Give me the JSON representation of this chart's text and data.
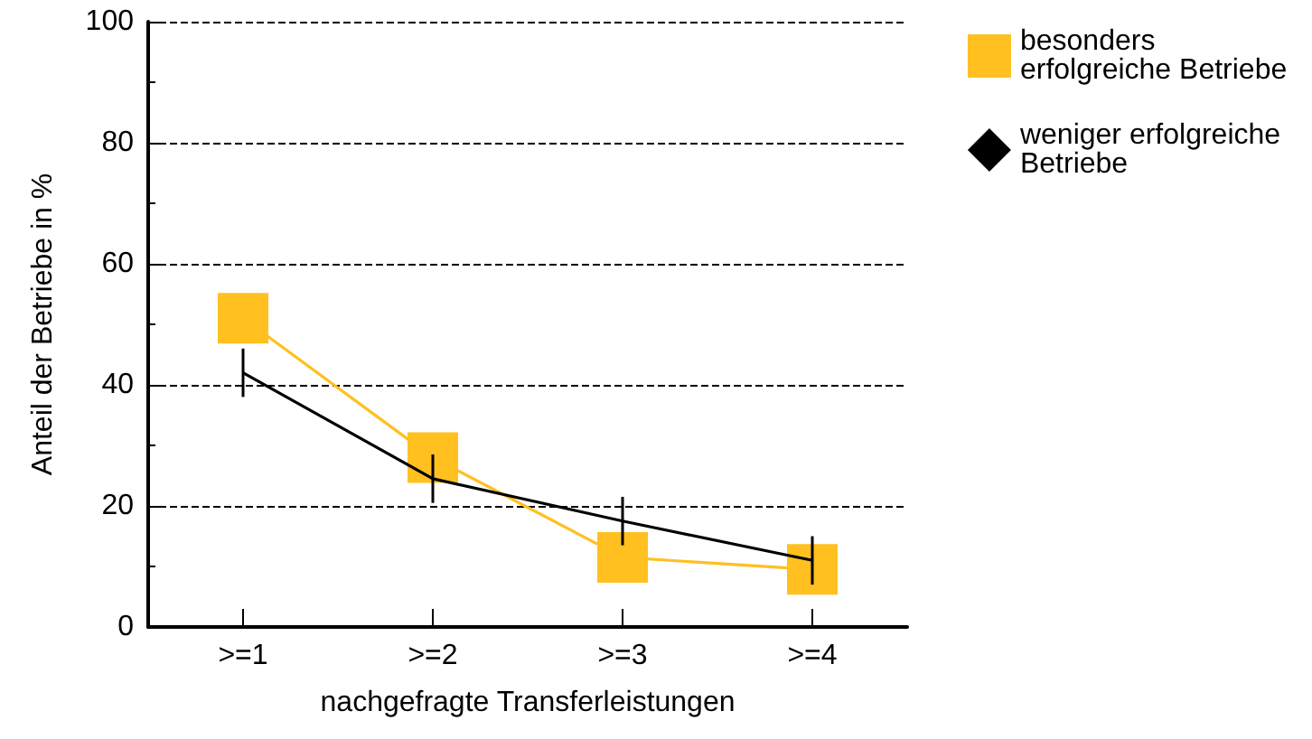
{
  "chart_data": {
    "type": "line",
    "xlabel": "nachgefragte Transferleistungen",
    "ylabel": "Anteil der Betriebe in %",
    "categories": [
      ">=1",
      ">=2",
      ">=3",
      ">=4"
    ],
    "series": [
      {
        "name": "besonders erfolgreiche Betriebe",
        "color": "#ffc020",
        "marker": "square",
        "values": [
          51,
          28,
          11.5,
          9.5
        ]
      },
      {
        "name": "weniger erfolgreiche Betriebe",
        "color": "#000000",
        "marker": "none",
        "values": [
          42,
          24.5,
          17.5,
          11
        ],
        "errors": [
          4,
          4,
          4,
          4
        ]
      }
    ],
    "ylim": [
      0,
      100
    ],
    "yticks": [
      0,
      20,
      40,
      60,
      80,
      100
    ],
    "grid": "y",
    "legend": "top right"
  }
}
